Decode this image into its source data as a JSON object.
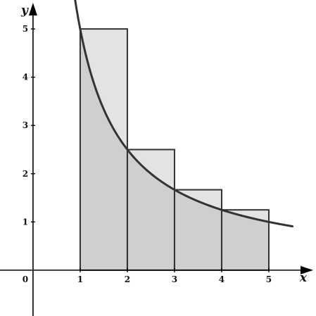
{
  "chart_data": {
    "type": "area",
    "xlabel": "x",
    "ylabel": "y",
    "origin_label": "0",
    "xlim": [
      -0.7,
      6.0
    ],
    "ylim": [
      -0.95,
      5.6
    ],
    "x_ticks": [
      "1",
      "2",
      "3",
      "4",
      "5"
    ],
    "y_ticks": [
      "1",
      "2",
      "3",
      "4",
      "5"
    ],
    "curve": {
      "function": "5/x",
      "x_range": [
        0.85,
        5.5
      ]
    },
    "rectangles": [
      {
        "x0": 1,
        "x1": 2,
        "height": 5
      },
      {
        "x0": 2,
        "x1": 3,
        "height": 2.5
      },
      {
        "x0": 3,
        "x1": 4,
        "height": 1.667
      },
      {
        "x0": 4,
        "x1": 5,
        "height": 1.25
      }
    ],
    "grid": false,
    "colors": {
      "rect_top_fill": "#e3e3e3",
      "area_under_curve_fill": "#cfcfcf",
      "rect_stroke": "#333333",
      "curve_stroke": "#333333",
      "axis": "#000000"
    }
  }
}
